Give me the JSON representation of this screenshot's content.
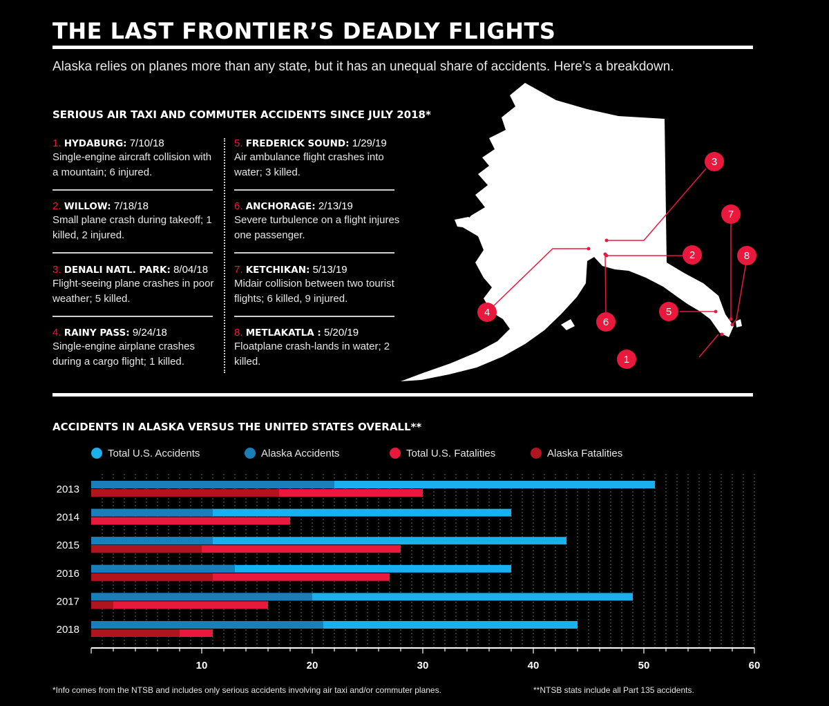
{
  "header": {
    "title": "THE LAST FRONTIER’S DEADLY FLIGHTS",
    "subtitle": "Alaska relies on planes more than any state, but it has an unequal share of accidents. Here’s a breakdown."
  },
  "accidents_section": {
    "heading": "SERIOUS AIR TAXI AND COMMUTER ACCIDENTS SINCE JULY 2018*",
    "items": [
      {
        "num": "1.",
        "place": "HYDABURG:",
        "date": "7/10/18",
        "desc": "Single-engine aircraft collision with a mountain; 6 injured."
      },
      {
        "num": "2.",
        "place": "WILLOW:",
        "date": "7/18/18",
        "desc": "Small plane crash during takeoff; 1 killed, 2 injured."
      },
      {
        "num": "3.",
        "place": "DENALI NATL. PARK:",
        "date": "8/04/18",
        "desc": "Flight-seeing plane crashes in poor weather; 5 killed."
      },
      {
        "num": "4.",
        "place": "RAINY PASS:",
        "date": "9/24/18",
        "desc": "Single-engine airplane crashes during a cargo flight; 1 killed."
      },
      {
        "num": "5.",
        "place": "FREDERICK SOUND:",
        "date": "1/29/19",
        "desc": "Air ambulance flight crashes into water; 3 killed."
      },
      {
        "num": "6.",
        "place": "ANCHORAGE:",
        "date": "2/13/19",
        "desc": "Severe turbulence on a flight injures one passenger."
      },
      {
        "num": "7.",
        "place": "KETCHIKAN:",
        "date": "5/13/19",
        "desc": "Midair collision between two tourist flights; 6 killed, 9 injured."
      },
      {
        "num": "8.",
        "place": "METLAKATLA :",
        "date": "5/20/19",
        "desc": "Floatplane crash-lands in water; 2 killed."
      }
    ]
  },
  "map": {
    "markers": [
      "1",
      "2",
      "3",
      "4",
      "5",
      "6",
      "7",
      "8"
    ]
  },
  "chart_section": {
    "heading": "ACCIDENTS IN ALASKA VERSUS THE UNITED STATES OVERALL**"
  },
  "chart_data": {
    "type": "bar",
    "orientation": "horizontal",
    "categories": [
      "2013",
      "2014",
      "2015",
      "2016",
      "2017",
      "2018"
    ],
    "series": [
      {
        "name": "Total U.S. Accidents",
        "color": "#1ab0ee",
        "values": [
          51,
          38,
          43,
          38,
          49,
          44
        ]
      },
      {
        "name": "Alaska Accidents",
        "color": "#1a7fb8",
        "values": [
          22,
          11,
          11,
          13,
          20,
          21
        ]
      },
      {
        "name": "Total U.S. Fatalities",
        "color": "#e8193c",
        "values": [
          30,
          18,
          28,
          27,
          16,
          11
        ]
      },
      {
        "name": "Alaska Fatalities",
        "color": "#b0141f",
        "values": [
          17,
          0,
          10,
          11,
          2,
          8
        ]
      }
    ],
    "xlim": [
      0,
      60
    ],
    "xticks": [
      10,
      20,
      30,
      40,
      50,
      60
    ],
    "legend_position": "top",
    "grid": "dotted vertical"
  },
  "footnotes": {
    "left": "*Info comes from the NTSB and includes only serious accidents involving air taxi and/or commuter planes.",
    "right": "**NTSB stats include all Part 135 accidents."
  }
}
